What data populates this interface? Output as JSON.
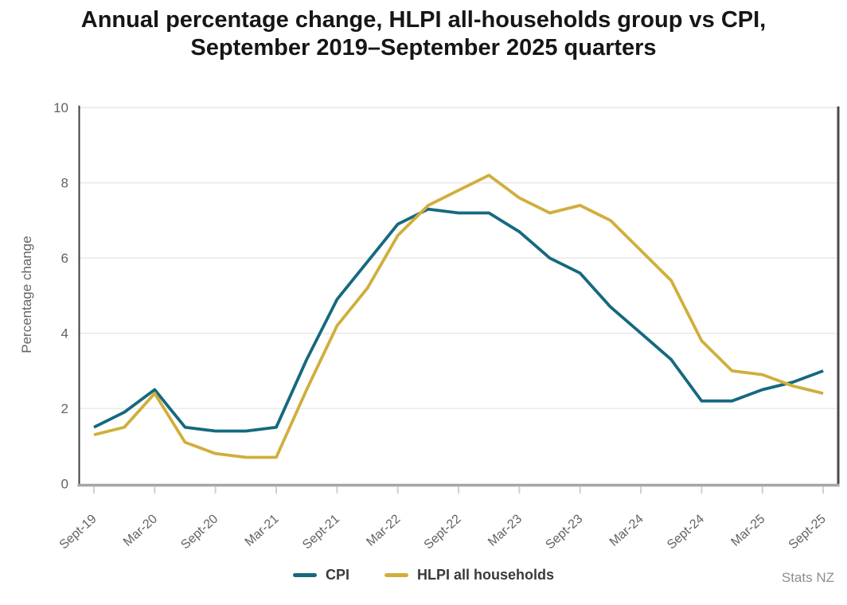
{
  "title": "Annual percentage change, HLPI all-households group vs CPI, September 2019–September 2025 quarters",
  "source": "Stats NZ",
  "chart_data": {
    "type": "line",
    "title": "Annual percentage change, HLPI all-households group vs CPI, September 2019–September 2025 quarters",
    "xlabel": "",
    "ylabel": "Percentage change",
    "ylim": [
      0,
      10
    ],
    "yticks": [
      0,
      2,
      4,
      6,
      8,
      10
    ],
    "grid": "horizontal",
    "legend_position": "bottom-center",
    "categories": [
      "Sept-19",
      "Dec-19",
      "Mar-20",
      "Jun-20",
      "Sept-20",
      "Dec-20",
      "Mar-21",
      "Jun-21",
      "Sept-21",
      "Dec-21",
      "Mar-22",
      "Jun-22",
      "Sept-22",
      "Dec-22",
      "Mar-23",
      "Jun-23",
      "Sept-23",
      "Dec-23",
      "Mar-24",
      "Jun-24",
      "Sept-24",
      "Dec-24",
      "Mar-25",
      "Jun-25",
      "Sept-25"
    ],
    "x_tick_labels": [
      "Sept-19",
      "Mar-20",
      "Sept-20",
      "Mar-21",
      "Sept-21",
      "Mar-22",
      "Sept-22",
      "Mar-23",
      "Sept-23",
      "Mar-24",
      "Sept-24",
      "Mar-25",
      "Sept-25"
    ],
    "series": [
      {
        "name": "CPI",
        "color": "#15697F",
        "values": [
          1.5,
          1.9,
          2.5,
          1.5,
          1.4,
          1.4,
          1.5,
          3.3,
          4.9,
          5.9,
          6.9,
          7.3,
          7.2,
          7.2,
          6.7,
          6.0,
          5.6,
          4.7,
          4.0,
          3.3,
          2.2,
          2.2,
          2.5,
          2.7,
          3.0
        ]
      },
      {
        "name": "HLPI all households",
        "color": "#D1AE3C",
        "values": [
          1.3,
          1.5,
          2.4,
          1.1,
          0.8,
          0.7,
          0.7,
          2.5,
          4.2,
          5.2,
          6.6,
          7.4,
          7.8,
          8.2,
          7.6,
          7.2,
          7.4,
          7.0,
          6.2,
          5.4,
          3.8,
          3.0,
          2.9,
          2.6,
          2.4
        ]
      }
    ],
    "colors": {
      "axis_text": "#636363",
      "gridline": "#e9e9e9",
      "left_axis": "#3d3d3d",
      "right_border": "#4a4a4a",
      "bottom_axis": "#a6a6a6",
      "tick_mark": "#c8d1e4"
    }
  }
}
